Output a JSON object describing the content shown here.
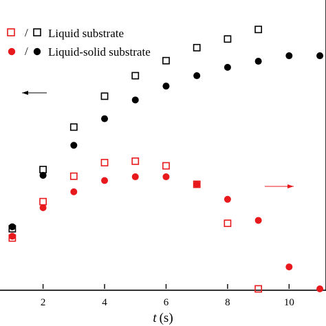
{
  "chart_data": {
    "type": "scatter",
    "xlabel_var": "t",
    "xlabel_unit": "(s)",
    "xlim": [
      0.6,
      11.2
    ],
    "ylim_left": [
      0,
      1
    ],
    "ylim_right": [
      0,
      1
    ],
    "x_ticks": [
      2,
      4,
      6,
      8,
      10
    ],
    "legend_position": "top-left",
    "colors": {
      "black": "#000000",
      "red": "#e8191c"
    },
    "legend": [
      {
        "open": "red-open-square",
        "filled": "black-open-square",
        "separator": "/",
        "text": "Liquid substrate"
      },
      {
        "open": "red-filled-circle",
        "filled": "black-filled-circle",
        "separator": "/",
        "text": "Liquid-solid substrate"
      }
    ],
    "series": [
      {
        "key": "black_squares",
        "axis": "left",
        "marker": "open-square",
        "color": "#000000",
        "x": [
          1,
          2,
          3,
          4,
          5,
          6,
          7,
          8,
          9
        ],
        "y": [
          0.208,
          0.413,
          0.56,
          0.667,
          0.738,
          0.79,
          0.835,
          0.865,
          0.898
        ]
      },
      {
        "key": "black_circles",
        "axis": "left",
        "marker": "filled-circle",
        "color": "#000000",
        "x": [
          1,
          2,
          3,
          4,
          5,
          6,
          7,
          8,
          9,
          10,
          11
        ],
        "y": [
          0.215,
          0.393,
          0.497,
          0.589,
          0.654,
          0.702,
          0.738,
          0.767,
          0.788,
          0.807,
          0.807
        ]
      },
      {
        "key": "red_squares",
        "axis": "right",
        "marker": "open-square",
        "color": "#e8191c",
        "x": [
          1,
          2,
          3,
          4,
          5,
          6,
          7,
          8,
          9
        ],
        "y": [
          0.176,
          0.302,
          0.39,
          0.437,
          0.442,
          0.426,
          0.362,
          0.227,
          0.0
        ]
      },
      {
        "key": "red_circles",
        "axis": "right",
        "marker": "filled-circle",
        "color": "#e8191c",
        "x": [
          1,
          2,
          3,
          4,
          5,
          6,
          7,
          8,
          9,
          10,
          11
        ],
        "y": [
          0.182,
          0.281,
          0.336,
          0.375,
          0.388,
          0.388,
          0.362,
          0.31,
          0.237,
          0.076,
          0.0
        ]
      }
    ],
    "annotations": [
      {
        "key": "arrow_left_axis",
        "direction": "left",
        "color": "#000000",
        "points_to": "left"
      },
      {
        "key": "arrow_right_axis",
        "direction": "right",
        "color": "#e8191c",
        "points_to": "right"
      }
    ]
  }
}
